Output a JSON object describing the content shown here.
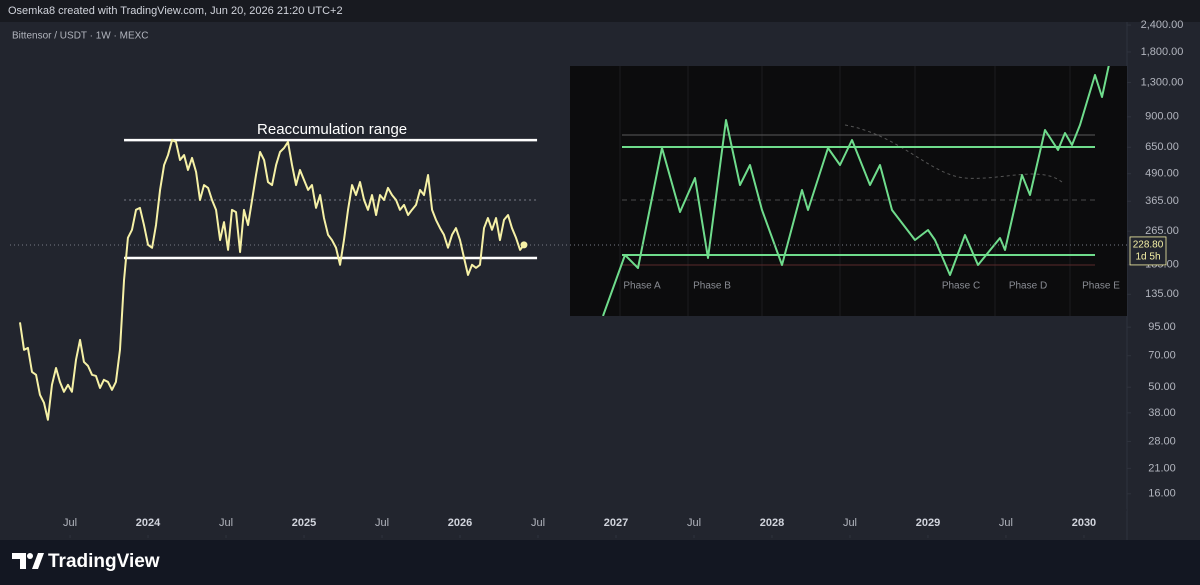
{
  "header": {
    "text": "Osemka8 created with TradingView.com, Jun 20, 2026 21:20 UTC+2"
  },
  "footer": {
    "brand": "TradingView"
  },
  "chart_data": {
    "type": "line",
    "title": "Bittensor / USDT · 1W · MEXC",
    "color": "#f6f1a6",
    "log_scale": true,
    "grid": false,
    "x": [
      2023.179,
      2023.205,
      2023.23,
      2023.256,
      2023.282,
      2023.307,
      2023.333,
      2023.358,
      2023.384,
      2023.41,
      2023.435,
      2023.461,
      2023.487,
      2023.512,
      2023.538,
      2023.564,
      2023.589,
      2023.615,
      2023.641,
      2023.666,
      2023.692,
      2023.717,
      2023.743,
      2023.769,
      2023.794,
      2023.82,
      2023.846,
      2023.871,
      2023.897,
      2023.923,
      2023.948,
      2023.974,
      2024.0,
      2024.026,
      2024.051,
      2024.077,
      2024.103,
      2024.128,
      2024.154,
      2024.179,
      2024.205,
      2024.231,
      2024.256,
      2024.282,
      2024.308,
      2024.333,
      2024.359,
      2024.385,
      2024.41,
      2024.436,
      2024.462,
      2024.487,
      2024.513,
      2024.538,
      2024.564,
      2024.59,
      2024.615,
      2024.641,
      2024.667,
      2024.692,
      2024.718,
      2024.744,
      2024.769,
      2024.795,
      2024.821,
      2024.846,
      2024.872,
      2024.897,
      2024.923,
      2024.949,
      2024.974,
      2025.0,
      2025.026,
      2025.051,
      2025.077,
      2025.103,
      2025.128,
      2025.154,
      2025.179,
      2025.205,
      2025.231,
      2025.256,
      2025.282,
      2025.308,
      2025.333,
      2025.359,
      2025.385,
      2025.41,
      2025.436,
      2025.462,
      2025.487,
      2025.513,
      2025.538,
      2025.564,
      2025.59,
      2025.615,
      2025.641,
      2025.667,
      2025.692,
      2025.718,
      2025.744,
      2025.769,
      2025.795,
      2025.821,
      2025.846,
      2025.872,
      2025.897,
      2025.923,
      2025.949,
      2025.974,
      2026.0,
      2026.026,
      2026.051,
      2026.077,
      2026.103,
      2026.128,
      2026.154,
      2026.179,
      2026.205,
      2026.231,
      2026.256,
      2026.282,
      2026.308,
      2026.333,
      2026.359,
      2026.385,
      2026.41
    ],
    "values": [
      100,
      74.5,
      76.1,
      58.9,
      57.1,
      46.1,
      42.3,
      35.3,
      51.3,
      61.4,
      52.9,
      47.6,
      51.3,
      47.6,
      66.9,
      82.9,
      65.5,
      62.8,
      57.1,
      56.4,
      49.6,
      54.1,
      52.9,
      48.6,
      52.9,
      74.5,
      157,
      247,
      269,
      333,
      340,
      283,
      229,
      222,
      283,
      412,
      538,
      598,
      702,
      688,
      567,
      598,
      510,
      580,
      499,
      370,
      434,
      421,
      370,
      333,
      241,
      292,
      217,
      333,
      325,
      212,
      333,
      283,
      370,
      483,
      618,
      567,
      448,
      434,
      538,
      618,
      645,
      688,
      538,
      434,
      510,
      458,
      412,
      434,
      340,
      390,
      305,
      255,
      241,
      222,
      185,
      241,
      333,
      434,
      390,
      448,
      370,
      333,
      390,
      315,
      390,
      370,
      421,
      390,
      370,
      333,
      351,
      315,
      333,
      351,
      412,
      390,
      483,
      333,
      299,
      274,
      255,
      222,
      255,
      274,
      241,
      199,
      166,
      185,
      179,
      185,
      274,
      305,
      269,
      305,
      241,
      299,
      315,
      274,
      247,
      217,
      229
    ],
    "levels": [
      {
        "value": 702,
        "x": [
          2023.846,
          2026.494
        ],
        "color": "#ffffff",
        "style": "solid"
      },
      {
        "value": 199,
        "x": [
          2023.846,
          2026.494
        ],
        "color": "#ffffff",
        "style": "solid"
      },
      {
        "value": 370,
        "x": [
          2023.846,
          2026.494
        ],
        "color": "#787b86",
        "style": "dotted"
      }
    ],
    "annotations": [
      {
        "text": "Reaccumulation range",
        "x": 2025.18,
        "y": 780
      }
    ],
    "last_price": {
      "value": 228.8,
      "label": "228.80"
    },
    "countdown": "1d 5h",
    "xlim": [
      2023.115,
      2030.276
    ],
    "xticks": [
      {
        "value": 2023.5,
        "label": "Jul"
      },
      2024,
      {
        "value": 2024.5,
        "label": "Jul"
      },
      2025,
      {
        "value": 2025.5,
        "label": "Jul"
      },
      2026,
      {
        "value": 2026.5,
        "label": "Jul"
      },
      2027,
      {
        "value": 2027.5,
        "label": "Jul"
      },
      2028,
      {
        "value": 2028.5,
        "label": "Jul"
      },
      2029,
      {
        "value": 2029.5,
        "label": "Jul"
      },
      2030
    ],
    "ylim": [
      10.3,
      2480
    ],
    "yticks": [
      {
        "value": 16,
        "label": "16.00"
      },
      {
        "value": 21,
        "label": "21.00"
      },
      {
        "value": 28,
        "label": "28.00"
      },
      {
        "value": 38,
        "label": "38.00"
      },
      {
        "value": 50,
        "label": "50.00"
      },
      {
        "value": 70,
        "label": "70.00"
      },
      {
        "value": 95,
        "label": "95.00"
      },
      {
        "value": 135,
        "label": "135.00"
      },
      {
        "value": 185,
        "label": "185.00"
      },
      {
        "value": 265,
        "label": "265.00"
      },
      {
        "value": 365,
        "label": "365.00"
      },
      {
        "value": 490,
        "label": "490.00"
      },
      {
        "value": 650,
        "label": "650.00"
      },
      {
        "value": 900,
        "label": "900.00"
      },
      {
        "value": 1300,
        "label": "1,300.00"
      },
      {
        "value": 1800,
        "label": "1,800.00"
      },
      {
        "value": 2400,
        "label": "2,400.00"
      }
    ]
  },
  "inset": {
    "phases": [
      "Phase A",
      "Phase B",
      "Phase C",
      "Phase D",
      "Phase E"
    ]
  }
}
